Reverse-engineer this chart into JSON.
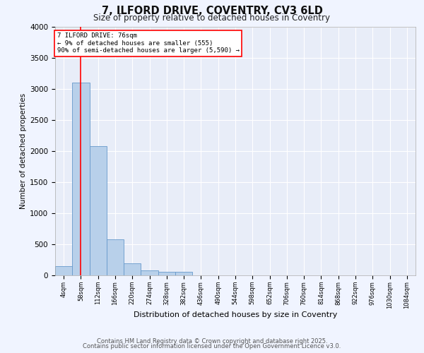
{
  "title1": "7, ILFORD DRIVE, COVENTRY, CV3 6LD",
  "title2": "Size of property relative to detached houses in Coventry",
  "xlabel": "Distribution of detached houses by size in Coventry",
  "ylabel": "Number of detached properties",
  "bar_color": "#b8d0ea",
  "bar_edge_color": "#6699cc",
  "fig_bg_color": "#f0f4ff",
  "ax_bg_color": "#e8edf8",
  "grid_color": "#ffffff",
  "categories": [
    "4sqm",
    "58sqm",
    "112sqm",
    "166sqm",
    "220sqm",
    "274sqm",
    "328sqm",
    "382sqm",
    "436sqm",
    "490sqm",
    "544sqm",
    "598sqm",
    "652sqm",
    "706sqm",
    "760sqm",
    "814sqm",
    "868sqm",
    "922sqm",
    "976sqm",
    "1030sqm",
    "1084sqm"
  ],
  "values": [
    150,
    3100,
    2080,
    575,
    195,
    85,
    60,
    55,
    0,
    0,
    0,
    0,
    0,
    0,
    0,
    0,
    0,
    0,
    0,
    0,
    0
  ],
  "ylim": [
    0,
    4000
  ],
  "yticks": [
    0,
    500,
    1000,
    1500,
    2000,
    2500,
    3000,
    3500,
    4000
  ],
  "redline_x": 1,
  "ann_line1": "7 ILFORD DRIVE: 76sqm",
  "ann_line2": "← 9% of detached houses are smaller (555)",
  "ann_line3": "90% of semi-detached houses are larger (5,590) →",
  "footer1": "Contains HM Land Registry data © Crown copyright and database right 2025.",
  "footer2": "Contains public sector information licensed under the Open Government Licence v3.0."
}
